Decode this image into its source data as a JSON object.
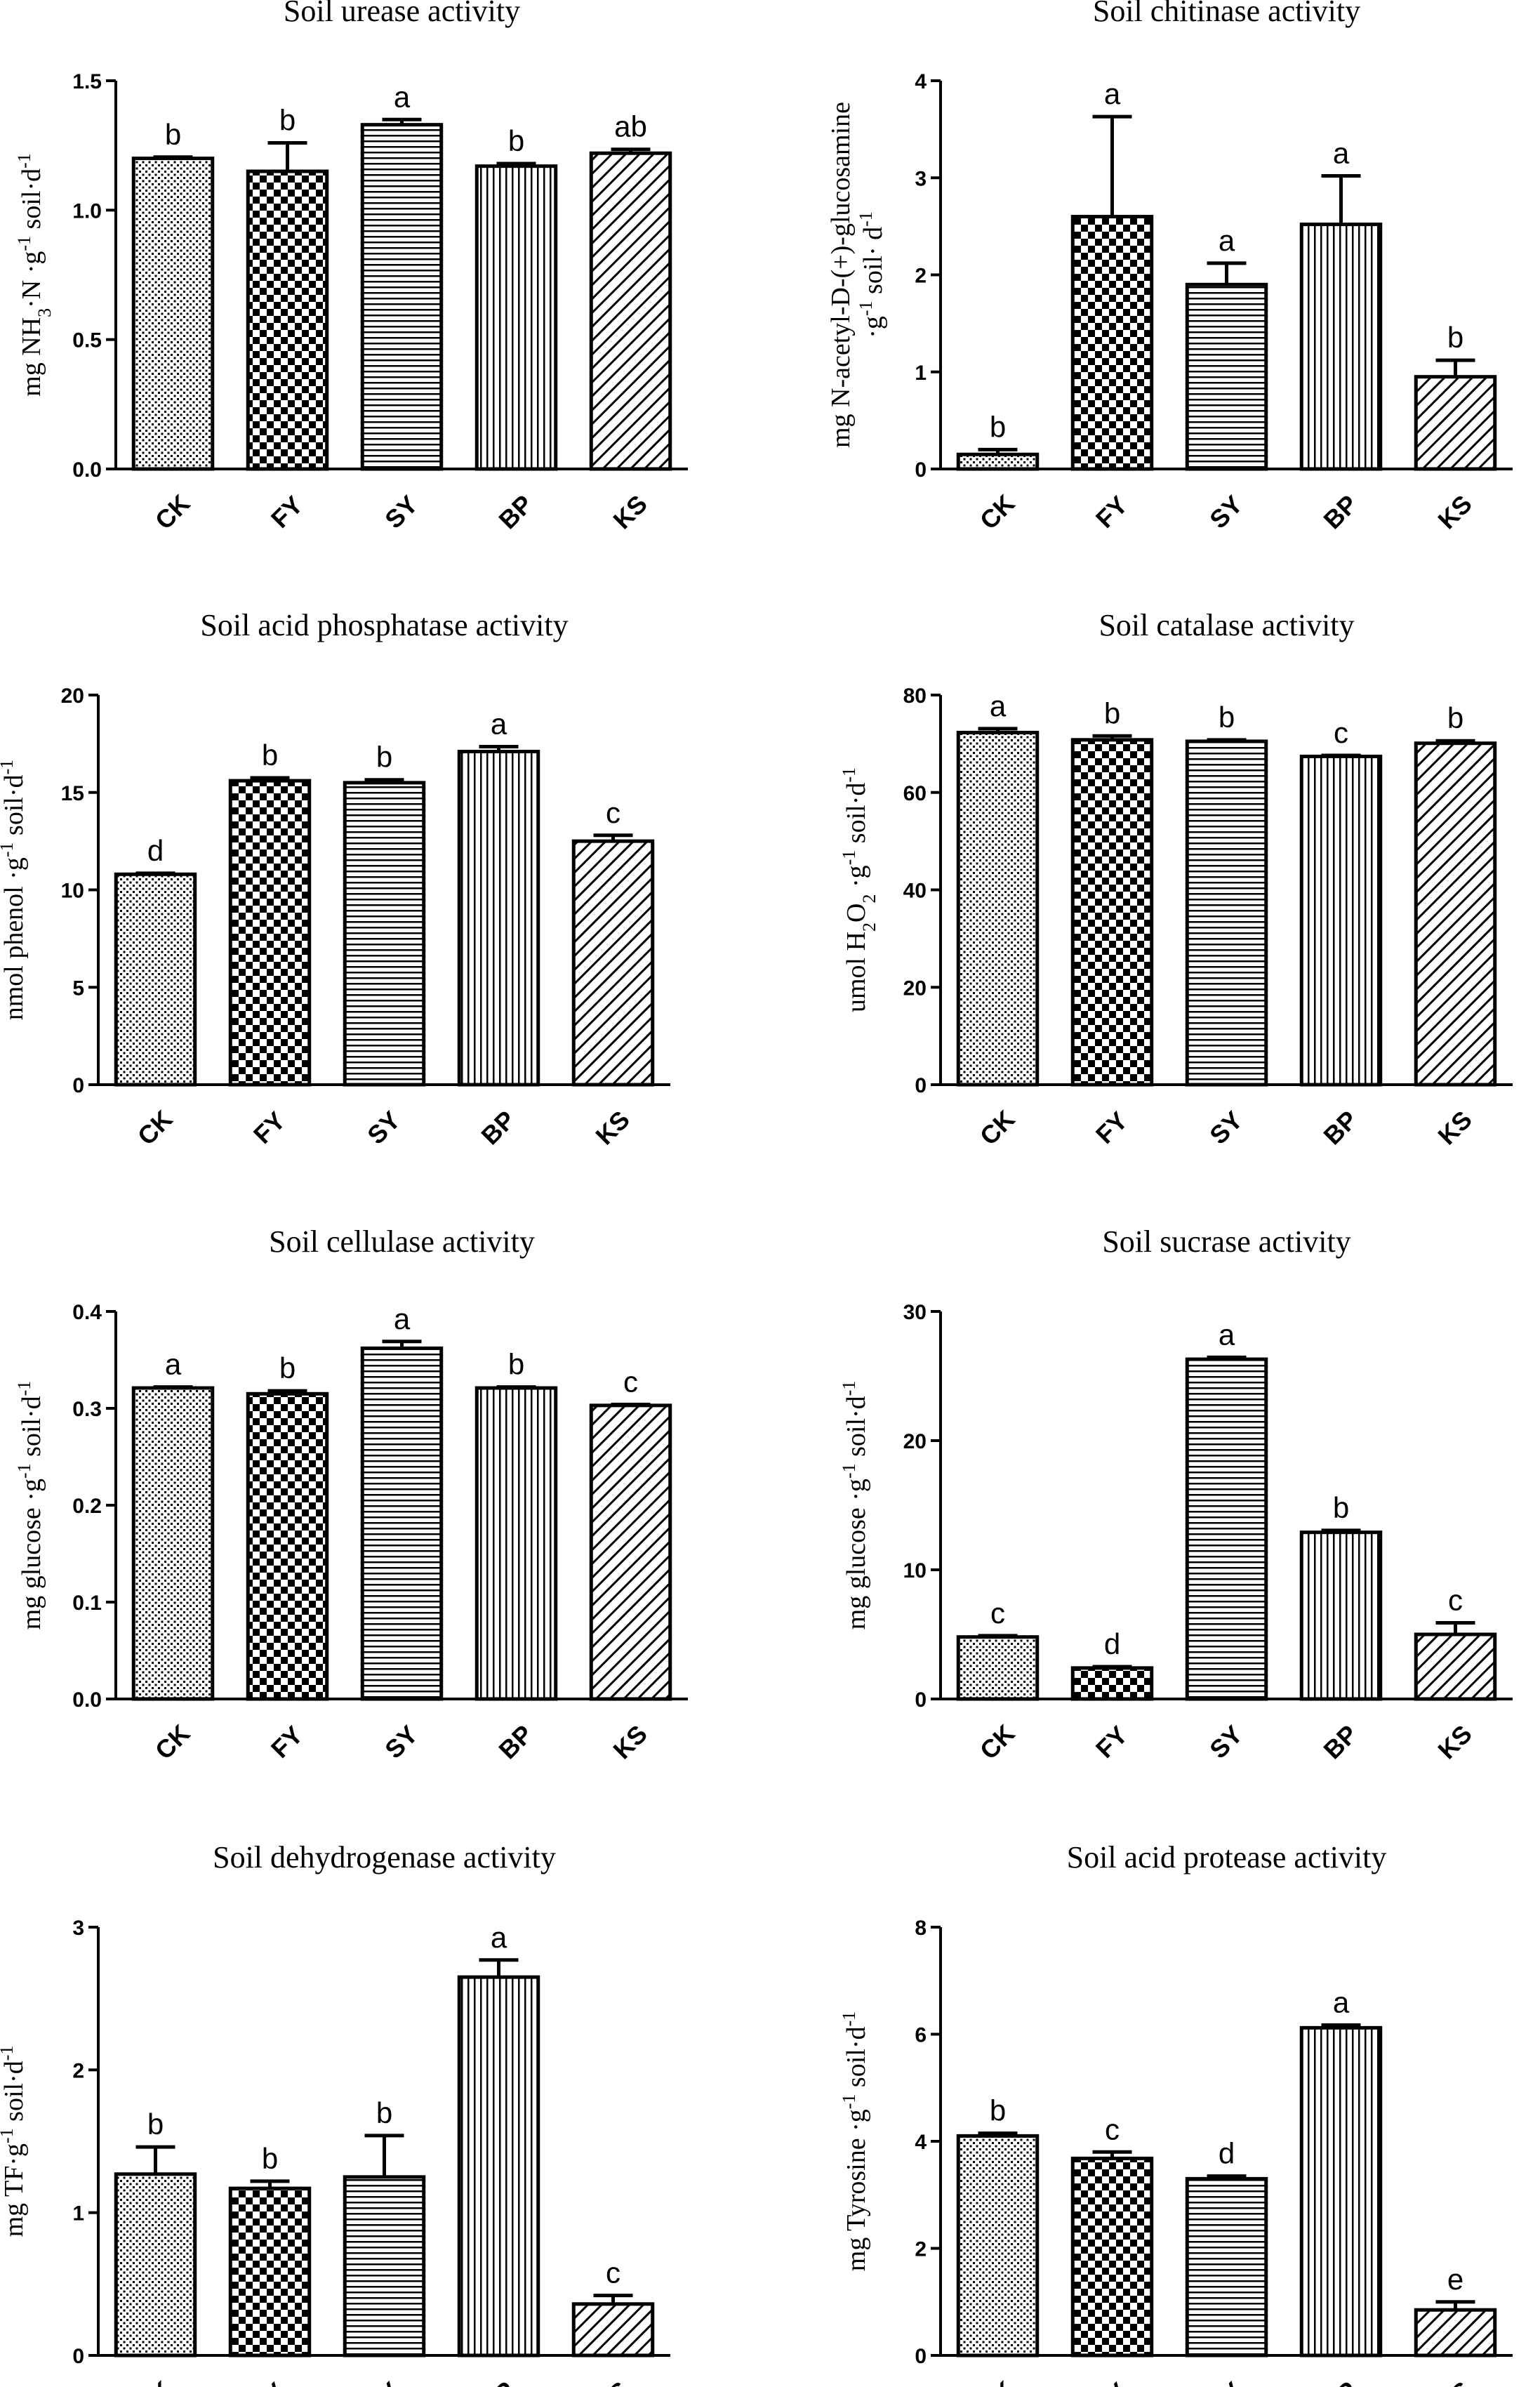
{
  "chart_data": [
    {
      "type": "bar",
      "title": "Soil urease activity",
      "ylabel_parts": [
        "mg NH",
        "3",
        "·N ·g",
        "-1",
        " soil·d",
        "-1"
      ],
      "categories": [
        "CK",
        "FY",
        "SY",
        "BP",
        "KS"
      ],
      "values": [
        1.2,
        1.15,
        1.33,
        1.17,
        1.22
      ],
      "errors": [
        0.005,
        0.11,
        0.02,
        0.01,
        0.015
      ],
      "sig_letters": [
        "b",
        "b",
        "a",
        "b",
        "ab"
      ],
      "ylim": [
        0,
        1.5
      ],
      "yticks": [
        0,
        0.5,
        1.0,
        1.5
      ],
      "ytick_labels": [
        "0.0",
        "0.5",
        "1.0",
        "1.5"
      ]
    },
    {
      "type": "bar",
      "title": "Soil chitinase activity",
      "ylabel_line1": "mg N-acetyl-D-(+)-glucosamine",
      "ylabel_parts": [
        "·g",
        "-1",
        " soil· d",
        "-1"
      ],
      "categories": [
        "CK",
        "FY",
        "SY",
        "BP",
        "KS"
      ],
      "values": [
        0.15,
        2.6,
        1.9,
        2.52,
        0.95
      ],
      "errors": [
        0.05,
        1.03,
        0.22,
        0.5,
        0.17
      ],
      "sig_letters": [
        "b",
        "a",
        "a",
        "a",
        "b"
      ],
      "ylim": [
        0,
        4
      ],
      "yticks": [
        0,
        1,
        2,
        3,
        4
      ],
      "ytick_labels": [
        "0",
        "1",
        "2",
        "3",
        "4"
      ]
    },
    {
      "type": "bar",
      "title": "Soil acid phosphatase activity",
      "ylabel_parts": [
        "nmol phenol ·g",
        "-1",
        " soil·d",
        "-1"
      ],
      "categories": [
        "CK",
        "FY",
        "SY",
        "BP",
        "KS"
      ],
      "values": [
        10.8,
        15.6,
        15.5,
        17.1,
        12.5
      ],
      "errors": [
        0.05,
        0.15,
        0.15,
        0.25,
        0.3
      ],
      "sig_letters": [
        "d",
        "b",
        "b",
        "a",
        "c"
      ],
      "ylim": [
        0,
        20
      ],
      "yticks": [
        0,
        5,
        10,
        15,
        20
      ],
      "ytick_labels": [
        "0",
        "5",
        "10",
        "15",
        "20"
      ]
    },
    {
      "type": "bar",
      "title": "Soil catalase activity",
      "ylabel_parts": [
        "umol H",
        "2",
        "O",
        "2",
        " ·g",
        "-1",
        " soil·d",
        "-1"
      ],
      "categories": [
        "CK",
        "FY",
        "SY",
        "BP",
        "KS"
      ],
      "values": [
        72.3,
        70.8,
        70.5,
        67.4,
        70.1
      ],
      "errors": [
        0.8,
        0.8,
        0.3,
        0.2,
        0.5
      ],
      "sig_letters": [
        "a",
        "b",
        "b",
        "c",
        "b"
      ],
      "ylim": [
        0,
        80
      ],
      "yticks": [
        0,
        20,
        40,
        60,
        80
      ],
      "ytick_labels": [
        "0",
        "20",
        "40",
        "60",
        "80"
      ]
    },
    {
      "type": "bar",
      "title": "Soil cellulase activity",
      "ylabel_parts": [
        "mg glucose ·g",
        "-1",
        " soil·d",
        "-1"
      ],
      "categories": [
        "CK",
        "FY",
        "SY",
        "BP",
        "KS"
      ],
      "values": [
        0.321,
        0.315,
        0.362,
        0.321,
        0.303
      ],
      "errors": [
        0.001,
        0.003,
        0.007,
        0.001,
        0.001
      ],
      "sig_letters": [
        "a",
        "b",
        "a",
        "b",
        "c"
      ],
      "ylim": [
        0,
        0.4
      ],
      "yticks": [
        0,
        0.1,
        0.2,
        0.3,
        0.4
      ],
      "ytick_labels": [
        "0.0",
        "0.1",
        "0.2",
        "0.3",
        "0.4"
      ]
    },
    {
      "type": "bar",
      "title": "Soil sucrase activity",
      "ylabel_parts": [
        "mg glucose ·g",
        "-1",
        " soil·d",
        "-1"
      ],
      "categories": [
        "CK",
        "FY",
        "SY",
        "BP",
        "KS"
      ],
      "values": [
        4.8,
        2.4,
        26.3,
        12.9,
        5.0
      ],
      "errors": [
        0.1,
        0.1,
        0.15,
        0.15,
        0.9
      ],
      "sig_letters": [
        "c",
        "d",
        "a",
        "b",
        "c"
      ],
      "ylim": [
        0,
        30
      ],
      "yticks": [
        0,
        10,
        20,
        30
      ],
      "ytick_labels": [
        "0",
        "10",
        "20",
        "30"
      ]
    },
    {
      "type": "bar",
      "title": "Soil dehydrogenase activity",
      "ylabel_parts": [
        "mg TF·g",
        "-1",
        " soil·d",
        "-1"
      ],
      "categories": [
        "CK",
        "FY",
        "SY",
        "BP",
        "KS"
      ],
      "values": [
        1.27,
        1.17,
        1.25,
        2.65,
        0.36
      ],
      "errors": [
        0.19,
        0.05,
        0.29,
        0.12,
        0.06
      ],
      "sig_letters": [
        "b",
        "b",
        "b",
        "a",
        "c"
      ],
      "ylim": [
        0,
        3
      ],
      "yticks": [
        0,
        1,
        2,
        3
      ],
      "ytick_labels": [
        "0",
        "1",
        "2",
        "3"
      ]
    },
    {
      "type": "bar",
      "title": "Soil acid protease activity",
      "ylabel_parts": [
        "mg Tyrosine ·g",
        "-1",
        " soil·d",
        "-1"
      ],
      "categories": [
        "CK",
        "FY",
        "SY",
        "BP",
        "KS"
      ],
      "values": [
        4.1,
        3.68,
        3.3,
        6.12,
        0.85
      ],
      "errors": [
        0.05,
        0.12,
        0.05,
        0.05,
        0.15
      ],
      "sig_letters": [
        "b",
        "c",
        "d",
        "a",
        "e"
      ],
      "ylim": [
        0,
        8
      ],
      "yticks": [
        0,
        2,
        4,
        6,
        8
      ],
      "ytick_labels": [
        "0",
        "2",
        "4",
        "6",
        "8"
      ]
    }
  ]
}
